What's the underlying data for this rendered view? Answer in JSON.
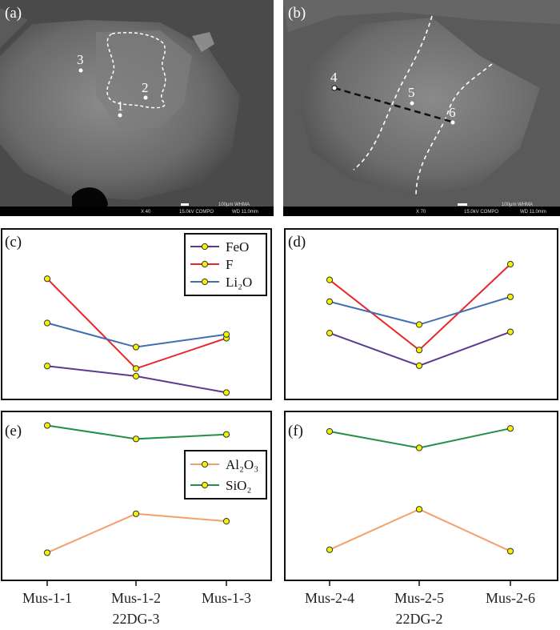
{
  "images": [
    {
      "label": "(a)",
      "footer": {
        "scale": "100μm WHMA",
        "mag": "X 40",
        "kv": "15.0kV COMPO",
        "wd": "WD 11.0mm"
      },
      "points": [
        "1",
        "2",
        "3"
      ]
    },
    {
      "label": "(b)",
      "footer": {
        "scale": "100μm WHMA",
        "mag": "X 70",
        "kv": "15.0kV COMPO",
        "wd": "WD 11.0mm"
      },
      "points": [
        "4",
        "5",
        "6"
      ]
    }
  ],
  "colors": {
    "FeO": "#5b3a8f",
    "F": "#e8262a",
    "Li2O": "#3f6eb3",
    "Al2O3": "#f4a06a",
    "SiO2": "#239045",
    "marker_fill": "#f2f200",
    "marker_stroke": "#333333"
  },
  "chart_data": [
    {
      "type": "line",
      "panel": "(c)",
      "categories": [
        "Mus-1-1",
        "Mus-1-2",
        "Mus-1-3"
      ],
      "group_label": "22DG-3",
      "y_axis_shown": false,
      "ylim": [
        0,
        100
      ],
      "legend": [
        "FeO",
        "F",
        "Li₂O"
      ],
      "legend_position": "top-right",
      "series": [
        {
          "name": "FeO",
          "key": "FeO",
          "values": [
            22,
            14,
            1
          ]
        },
        {
          "name": "F",
          "key": "F",
          "values": [
            91,
            20,
            44
          ]
        },
        {
          "name": "Li₂O",
          "key": "Li2O",
          "values": [
            56,
            37,
            47
          ]
        }
      ]
    },
    {
      "type": "line",
      "panel": "(d)",
      "categories": [
        "Mus-2-4",
        "Mus-2-5",
        "Mus-2-6"
      ],
      "group_label": "22DG-2",
      "y_axis_shown": false,
      "ylim": [
        0,
        100
      ],
      "series": [
        {
          "key": "FeO",
          "values": [
            41,
            14,
            42
          ]
        },
        {
          "key": "F",
          "values": [
            85,
            27,
            98
          ]
        },
        {
          "key": "Li2O",
          "values": [
            67,
            48,
            71
          ]
        }
      ]
    },
    {
      "type": "line",
      "panel": "(e)",
      "categories": [
        "Mus-1-1",
        "Mus-1-2",
        "Mus-1-3"
      ],
      "group_label": "22DG-3",
      "y_axis_shown": false,
      "ylim": [
        0,
        100
      ],
      "legend": [
        "Al₂O₃",
        "SiO₂"
      ],
      "legend_position": "center-right",
      "series": [
        {
          "name": "Al₂O₃",
          "key": "Al2O3",
          "values": [
            11,
            37,
            32
          ]
        },
        {
          "name": "SiO₂",
          "key": "SiO2",
          "values": [
            96,
            87,
            90
          ]
        }
      ]
    },
    {
      "type": "line",
      "panel": "(f)",
      "categories": [
        "Mus-2-4",
        "Mus-2-5",
        "Mus-2-6"
      ],
      "group_label": "22DG-2",
      "y_axis_shown": false,
      "ylim": [
        0,
        100
      ],
      "series": [
        {
          "key": "Al2O3",
          "values": [
            13,
            40,
            12
          ]
        },
        {
          "key": "SiO2",
          "values": [
            92,
            81,
            94
          ]
        }
      ]
    }
  ]
}
